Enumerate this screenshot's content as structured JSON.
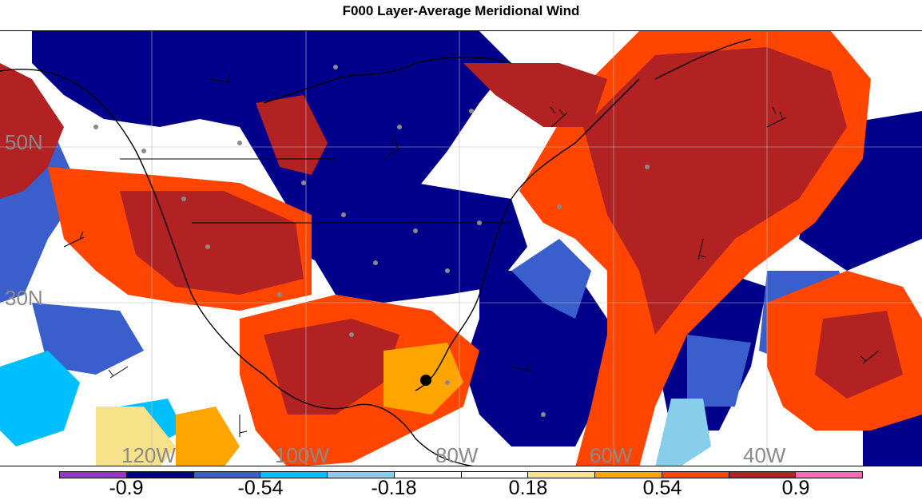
{
  "title": "F000 Layer-Average Meridional Wind",
  "map": {
    "lat_labels": [
      "50N",
      "30N"
    ],
    "lon_labels": [
      "120W",
      "100W",
      "80W",
      "60W",
      "40W"
    ],
    "label_color": "#8a8a8a"
  },
  "colorbar": {
    "colors": [
      "#9a32cd",
      "#00008b",
      "#3a5fcd",
      "#00bfff",
      "#87ceeb",
      "#ffffff",
      "#ffffff",
      "#f6e389",
      "#ffa500",
      "#ff4500",
      "#b22222",
      "#ff69b4"
    ],
    "tick_labels": [
      "-0.9",
      "-0.54",
      "-0.18",
      "0.18",
      "0.54",
      "0.9"
    ]
  },
  "palette": {
    "dark_blue": "#00008b",
    "blue": "#3a5fcd",
    "light_blue": "#00bfff",
    "pale_blue": "#b0e2ff",
    "pale_yellow": "#f6e389",
    "orange": "#ffa500",
    "red_orange": "#ff4500",
    "dark_red": "#b22222"
  }
}
